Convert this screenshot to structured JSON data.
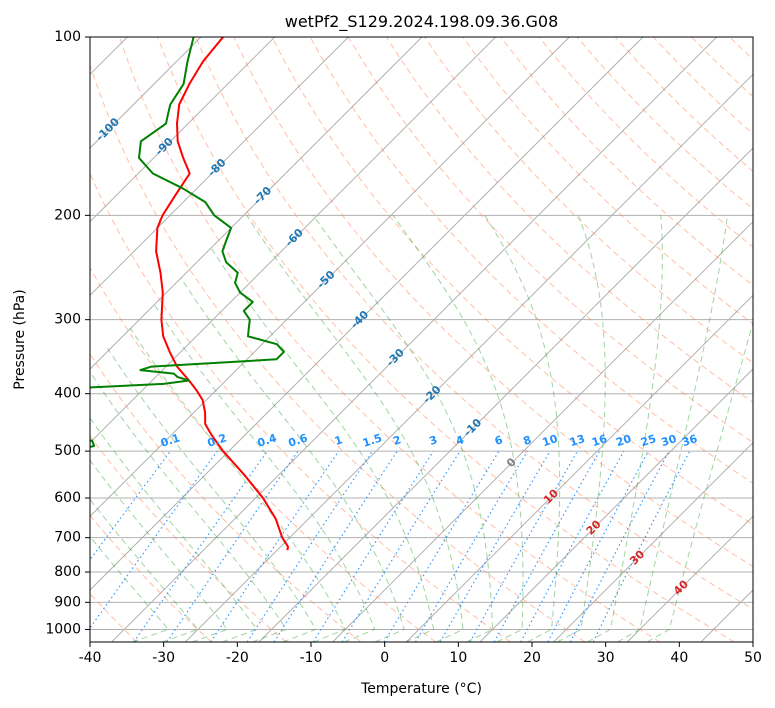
{
  "chart_data": {
    "type": "line",
    "title": "wetPf2_S129.2024.198.09.36.G08",
    "xlabel": "Temperature (°C)",
    "ylabel": "Pressure (hPa)",
    "xlim": [
      -40,
      50
    ],
    "ylim": [
      1050,
      100
    ],
    "y_scale": "log",
    "skew": true,
    "grid": true,
    "x_ticks": [
      "-40",
      "-30",
      "-20",
      "-10",
      "0",
      "10",
      "20",
      "30",
      "40",
      "50"
    ],
    "y_ticks": [
      "100",
      "200",
      "300",
      "400",
      "500",
      "600",
      "700",
      "800",
      "900",
      "1000"
    ],
    "colors": {
      "temperature": "#ff0000",
      "dewpoint": "#008000",
      "dry_adiabat": "#ff7f50",
      "moist_adiabat": "#2ca02c",
      "mixing_ratio": "#1e90ff",
      "skewed_isotherm_label": "#1f77b4",
      "warm_isotherm_label": "#d62728",
      "grid": "#b0b0b0"
    },
    "series": [
      {
        "key": "temperature",
        "pressure": [
          735,
          725,
          700,
          650,
          600,
          550,
          500,
          470,
          450,
          430,
          410,
          395,
          380,
          360,
          340,
          320,
          300,
          270,
          250,
          230,
          210,
          200,
          185,
          170,
          160,
          150,
          140,
          130,
          120,
          110,
          100
        ],
        "values": [
          -18.6,
          -19,
          -21,
          -24.5,
          -29,
          -34.5,
          -40.8,
          -44.5,
          -46.9,
          -48.5,
          -50.5,
          -52.6,
          -55,
          -58.5,
          -61.5,
          -64.5,
          -67,
          -70.5,
          -73.5,
          -77,
          -80,
          -81,
          -82,
          -83,
          -86,
          -89,
          -91.5,
          -93.8,
          -95.2,
          -96.4,
          -97
        ]
      },
      {
        "key": "dewpoint",
        "pressure": [
          740,
          735,
          730,
          725,
          720,
          710,
          700,
          690,
          680,
          670,
          660,
          650,
          640,
          630,
          620,
          610,
          600,
          590,
          580,
          570,
          560,
          550,
          540,
          530,
          520,
          510,
          500,
          490,
          480,
          470,
          460,
          450,
          440,
          430,
          420,
          410,
          400,
          395,
          390,
          385,
          380,
          375,
          370,
          365,
          360,
          355,
          350,
          340,
          330,
          320,
          310,
          300,
          290,
          280,
          270,
          260,
          250,
          240,
          230,
          220,
          210,
          200,
          190,
          180,
          170,
          160,
          150,
          140,
          135,
          130,
          120,
          110,
          100
        ],
        "values": [
          -52,
          -56.5,
          -60,
          -62,
          -61.5,
          -59,
          -67,
          -61.5,
          -61,
          -62,
          -59.5,
          -61,
          -60.5,
          -59.5,
          -57,
          -58,
          -59,
          -60,
          -60.5,
          -58.5,
          -56.5,
          -56.5,
          -57.5,
          -58.5,
          -60.5,
          -61.5,
          -61,
          -59,
          -60,
          -75,
          -95,
          -100,
          -100,
          -100,
          -100,
          -94,
          -77,
          -72,
          -67,
          -58,
          -55,
          -57,
          -58,
          -63,
          -62,
          -54,
          -46,
          -46,
          -48,
          -53,
          -54,
          -55,
          -57,
          -57,
          -60,
          -62,
          -63,
          -66,
          -68,
          -69,
          -70,
          -74,
          -77,
          -82,
          -88,
          -92,
          -94,
          -93,
          -94,
          -95,
          -96,
          -98.5,
          -101
        ]
      }
    ],
    "annotations": {
      "skewed_isotherm_labels": [
        "-100",
        "-90",
        "-80",
        "-70",
        "-60",
        "-50",
        "-40",
        "-30",
        "-20",
        "-10",
        "0"
      ],
      "warm_isotherm_labels": [
        "10",
        "20",
        "30",
        "40"
      ],
      "mixing_ratio_labels": [
        "0.1",
        "0.2",
        "0.4",
        "0.6",
        "1",
        "1.5",
        "2",
        "3",
        "4",
        "6",
        "8",
        "10",
        "13",
        "16",
        "20",
        "25",
        "30",
        "36"
      ]
    }
  }
}
